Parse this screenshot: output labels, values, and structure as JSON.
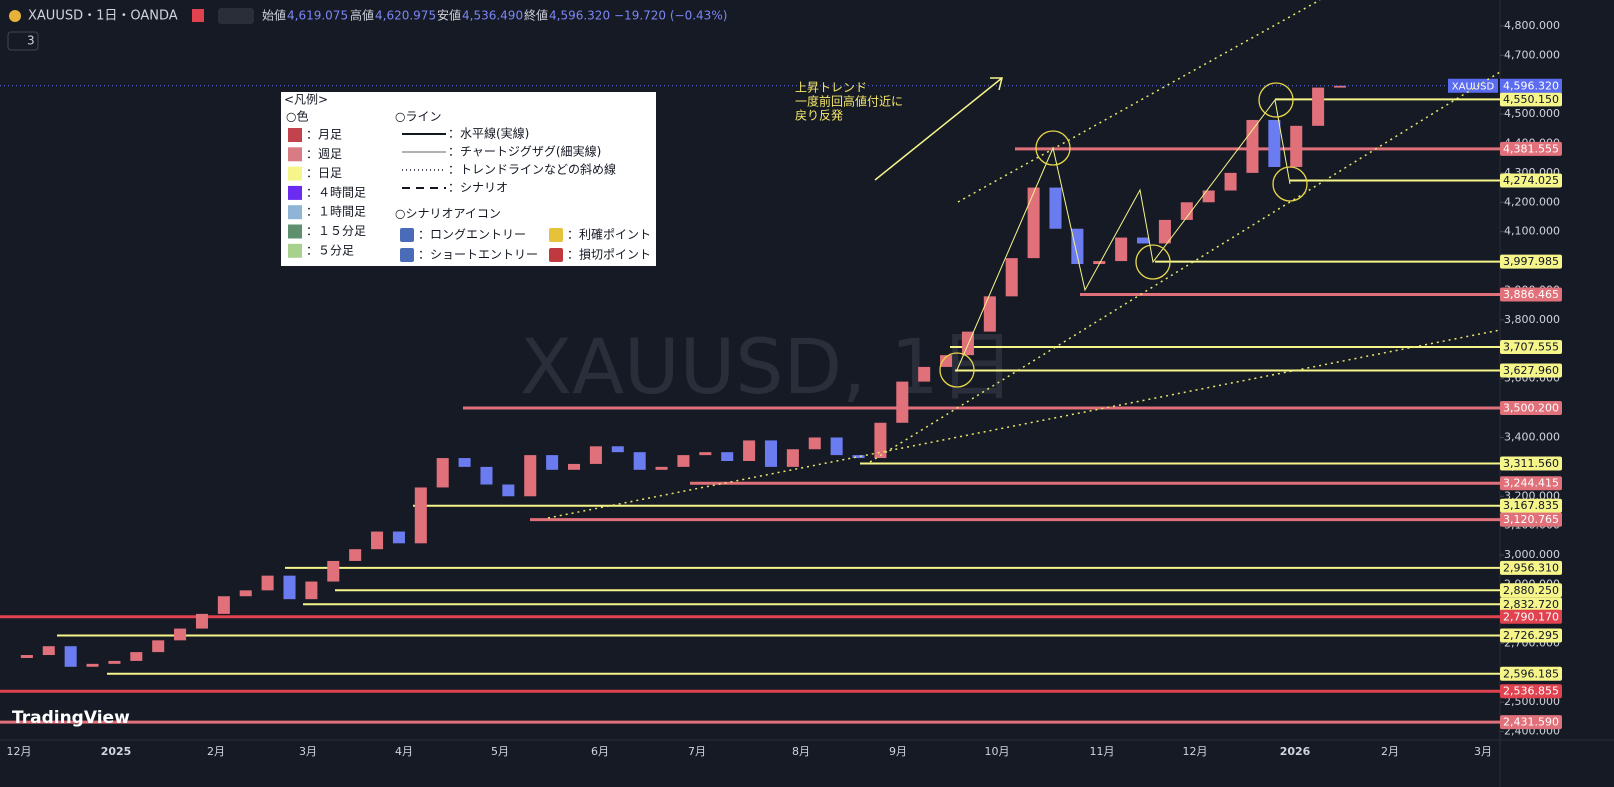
{
  "header": {
    "symbol": "XAUUSD・1日・OANDA",
    "open_label": "始値",
    "open": "4,619.075",
    "high_label": "高値",
    "high": "4,620.975",
    "low_label": "安値",
    "low": "4,536.490",
    "close_label": "終値",
    "close": "4,596.320",
    "change": "−19.720 (−0.43%)",
    "indicators": "3",
    "watermark": "XAUUSD, 1日",
    "logo": "TradingView"
  },
  "legend": {
    "title": "<凡例>",
    "colors_title": "○色",
    "colors": [
      {
        "label": "：月足",
        "color": "#c2424d"
      },
      {
        "label": "：週足",
        "color": "#d97b84"
      },
      {
        "label": "：日足",
        "color": "#f5f58a"
      },
      {
        "label": "：４時間足",
        "color": "#6a2cf0"
      },
      {
        "label": "：１時間足",
        "color": "#8fb5d6"
      },
      {
        "label": "：１５分足",
        "color": "#5e8f6f"
      },
      {
        "label": "：５分足",
        "color": "#a9d18e"
      }
    ],
    "lines_title": "○ライン",
    "lines": [
      "：水平線(実線)",
      "：チャートジグザグ(細実線)",
      "：トレンドラインなどの斜め線",
      "：シナリオ"
    ],
    "icons_title": "○シナリオアイコン",
    "icons": [
      "：ロングエントリー",
      "：ショートエントリー",
      "：利確ポイント",
      "：損切ポイント"
    ]
  },
  "chart_data": {
    "type": "candlestick",
    "annotation": [
      "上昇トレンド",
      "一度前回高値付近に",
      "戻り反発"
    ],
    "x_labels": [
      "12月",
      "2025",
      "2月",
      "3月",
      "4月",
      "5月",
      "6月",
      "7月",
      "8月",
      "9月",
      "10月",
      "11月",
      "12月",
      "2026",
      "2月",
      "3月"
    ],
    "series": [
      {
        "name": "XAUUSD",
        "up_color": "#e0707a",
        "down_color": "#6b7cf0",
        "values": [
          2650,
          2660,
          2690,
          2620,
          2630,
          2640,
          2670,
          2710,
          2750,
          2800,
          2860,
          2880,
          2930,
          2850,
          2910,
          2980,
          3020,
          3080,
          3040,
          3230,
          3330,
          3300,
          3240,
          3200,
          3340,
          3290,
          3310,
          3370,
          3350,
          3290,
          3300,
          3340,
          3350,
          3320,
          3390,
          3300,
          3360,
          3400,
          3340,
          3330,
          3450,
          3590,
          3640,
          3680,
          3760,
          3880,
          4010,
          4250,
          4110,
          3990,
          4000,
          4080,
          4060,
          4140,
          4200,
          4240,
          4300,
          4480,
          4320,
          4460,
          4590,
          4596.32
        ]
      }
    ],
    "current": {
      "name": "XAUUSD",
      "value": 4596.32,
      "label": "4,596.320",
      "color": "#5b6cf0"
    },
    "levels": [
      {
        "value": 4550.15,
        "label": "4,550.150",
        "color": "#f5f58a"
      },
      {
        "value": 4381.555,
        "label": "4,381.555",
        "color": "#e0707a"
      },
      {
        "value": 4274.025,
        "label": "4,274.025",
        "color": "#f5f58a"
      },
      {
        "value": 3997.985,
        "label": "3,997.985",
        "color": "#f5f58a"
      },
      {
        "value": 3886.465,
        "label": "3,886.465",
        "color": "#e0707a"
      },
      {
        "value": 3707.555,
        "label": "3,707.555",
        "color": "#f5f58a"
      },
      {
        "value": 3627.96,
        "label": "3,627.960",
        "color": "#f5f58a"
      },
      {
        "value": 3500.2,
        "label": "3,500.200",
        "color": "#e0707a"
      },
      {
        "value": 3311.56,
        "label": "3,311.560",
        "color": "#f5f58a"
      },
      {
        "value": 3244.415,
        "label": "3,244.415",
        "color": "#e0707a"
      },
      {
        "value": 3167.835,
        "label": "3,167.835",
        "color": "#f5f58a"
      },
      {
        "value": 3120.765,
        "label": "3,120.765",
        "color": "#f5f58a"
      },
      {
        "value": 3120.765,
        "label": "3,120.765",
        "color": "#e0707a"
      },
      {
        "value": 2956.31,
        "label": "2,956.310",
        "color": "#f5f58a"
      },
      {
        "value": 2880.25,
        "label": "2,880.250",
        "color": "#f5f58a"
      },
      {
        "value": 2832.72,
        "label": "2,832.720",
        "color": "#f5f58a"
      },
      {
        "value": 2790.17,
        "label": "2,790.170",
        "color": "#e0434f"
      },
      {
        "value": 2726.295,
        "label": "2,726.295",
        "color": "#f5f58a"
      },
      {
        "value": 2596.185,
        "label": "2,596.185",
        "color": "#f5f58a"
      },
      {
        "value": 2536.855,
        "label": "2,536.855",
        "color": "#e0434f"
      },
      {
        "value": 2431.59,
        "label": "2,431.590",
        "color": "#e0707a"
      }
    ],
    "ylim": [
      2371,
      4888
    ],
    "yticks": [
      {
        "value": 4800,
        "label": "4,800.000"
      },
      {
        "value": 4700,
        "label": "4,700.000"
      },
      {
        "value": 4600,
        "label": "4,600.000"
      },
      {
        "value": 4500,
        "label": "4,500.000"
      },
      {
        "value": 4400,
        "label": "4,400.000"
      },
      {
        "value": 4300,
        "label": "4,300.000"
      },
      {
        "value": 4200,
        "label": "4,200.000"
      },
      {
        "value": 4100,
        "label": "4,100.000"
      },
      {
        "value": 4000,
        "label": "4,000.000"
      },
      {
        "value": 3900,
        "label": "3,900.000"
      },
      {
        "value": 3800,
        "label": "3,800.000"
      },
      {
        "value": 3700,
        "label": "3,700.000"
      },
      {
        "value": 3600,
        "label": "3,600.000"
      },
      {
        "value": 3500,
        "label": "3,500.000"
      },
      {
        "value": 3400,
        "label": "3,400.000"
      },
      {
        "value": 3300,
        "label": "3,300.000"
      },
      {
        "value": 3200,
        "label": "3,200.000"
      },
      {
        "value": 3100,
        "label": "3,100.000"
      },
      {
        "value": 3000,
        "label": "3,000.000"
      },
      {
        "value": 2900,
        "label": "2,900.000"
      },
      {
        "value": 2800,
        "label": "2,800.000"
      },
      {
        "value": 2700,
        "label": "2,700.000"
      },
      {
        "value": 2600,
        "label": "2,600.000"
      },
      {
        "value": 2500,
        "label": "2,500.000"
      },
      {
        "value": 2400,
        "label": "2,400.000"
      }
    ]
  }
}
